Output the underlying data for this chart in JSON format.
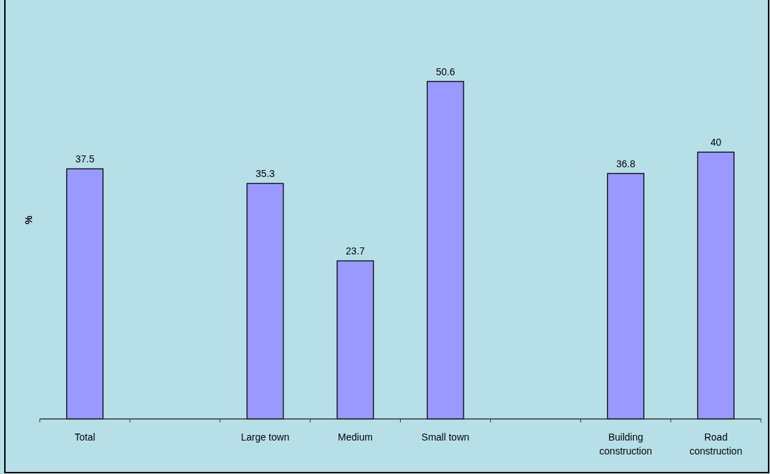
{
  "chart_data": {
    "type": "bar",
    "ylabel": "%",
    "categories": [
      "Total",
      null,
      "Large town",
      "Medium",
      "Small town",
      null,
      "Building construction",
      "Road construction"
    ],
    "values": [
      37.5,
      null,
      35.3,
      23.7,
      50.6,
      null,
      36.8,
      40
    ],
    "color": "#9999ff",
    "data_labels": true
  }
}
